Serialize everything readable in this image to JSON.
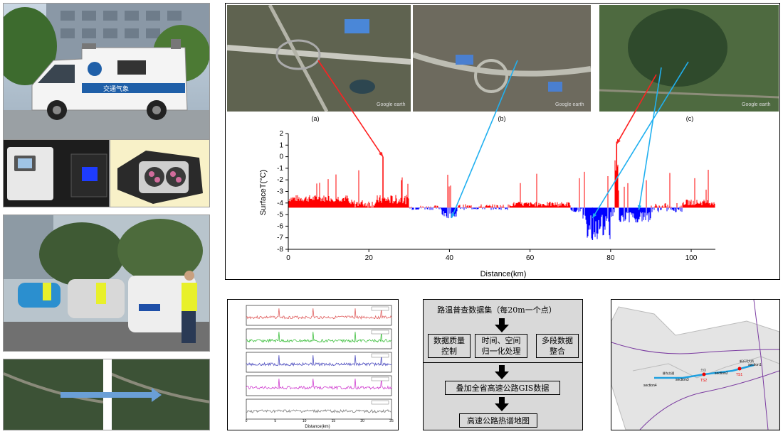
{
  "satellite": {
    "captions": [
      "(a)",
      "(b)",
      "(c)"
    ],
    "watermark": "Google earth"
  },
  "van": {
    "side_text": "交通气象"
  },
  "chart_data": {
    "type": "bar",
    "xlabel": "Distance(km)",
    "ylabel": "SurfaceT(°C)",
    "xlim": [
      0,
      106
    ],
    "ylim": [
      -8,
      2
    ],
    "xticks": [
      0,
      20,
      40,
      60,
      80,
      100
    ],
    "yticks": [
      2,
      1,
      0,
      -1,
      -2,
      -3,
      -4,
      -5,
      -6,
      -7,
      -8
    ],
    "baseline": -4.4,
    "colors": {
      "above": "#ff0000",
      "below": "#0000ff"
    },
    "description_peaks": [
      {
        "x": 23.5,
        "y": 0.0
      },
      {
        "x": 40.5,
        "y": -5.3
      },
      {
        "x": 75.5,
        "y": -7.2
      },
      {
        "x": 81.5,
        "y": 1.3
      },
      {
        "x": 87.0,
        "y": -4.6
      }
    ]
  },
  "small_chart": {
    "xlabel": "Distance(km)",
    "xticks": [
      "0",
      "5",
      "10",
      "15",
      "20",
      "25"
    ],
    "series": [
      {
        "color": "#e06060"
      },
      {
        "color": "#40c040"
      },
      {
        "color": "#5050c0"
      },
      {
        "color": "#d040d0"
      },
      {
        "color": "#808080"
      }
    ]
  },
  "flow": {
    "top": "路温普查数据集（每20m一个点）",
    "left": "数据质量控制",
    "left_lines": [
      "数据质量",
      "控制"
    ],
    "mid_lines": [
      "时间、空间",
      "归一化处理"
    ],
    "right_lines": [
      "多段数据",
      "整合"
    ],
    "overlay": "叠加全省高速公路GIS数据",
    "final": "高速公路热谱地图"
  },
  "map": {
    "sections": [
      "section1",
      "section2",
      "section3",
      "section4"
    ],
    "stations": [
      "TS1",
      "TS2"
    ],
    "places": [
      "新沂河大桥",
      "土山",
      "柳东交通"
    ]
  }
}
